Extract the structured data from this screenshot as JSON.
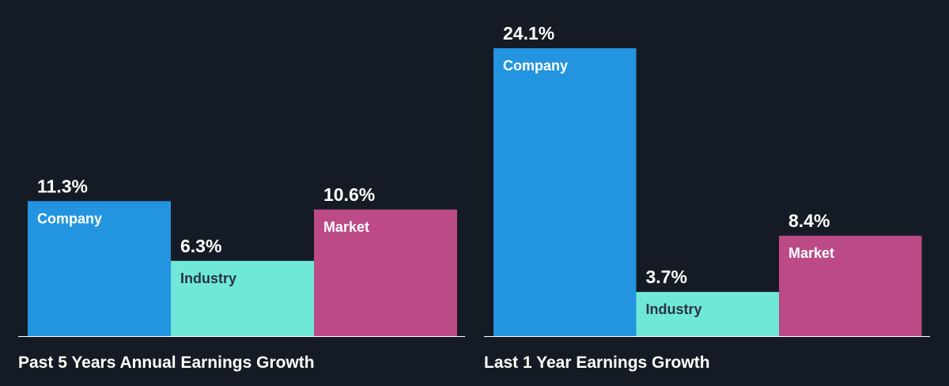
{
  "colors": {
    "background": "#151b24",
    "company": "#2394e0",
    "industry": "#6fe8d7",
    "market": "#bb4a86",
    "baseline": "#ffffff",
    "label_on_dark": "#ffffff",
    "label_on_light": "#2a3240"
  },
  "chart_data": [
    {
      "type": "bar",
      "title": "Past 5 Years Annual Earnings Growth",
      "categories": [
        "Company",
        "Industry",
        "Market"
      ],
      "values": [
        11.3,
        6.3,
        10.6
      ],
      "value_labels": [
        "11.3%",
        "6.3%",
        "10.6%"
      ],
      "unit": "%",
      "ylim": [
        0,
        24.1
      ],
      "grid": false,
      "legend": "none"
    },
    {
      "type": "bar",
      "title": "Last 1 Year Earnings Growth",
      "categories": [
        "Company",
        "Industry",
        "Market"
      ],
      "values": [
        24.1,
        3.7,
        8.4
      ],
      "value_labels": [
        "24.1%",
        "3.7%",
        "8.4%"
      ],
      "unit": "%",
      "ylim": [
        0,
        24.1
      ],
      "grid": false,
      "legend": "none"
    }
  ]
}
